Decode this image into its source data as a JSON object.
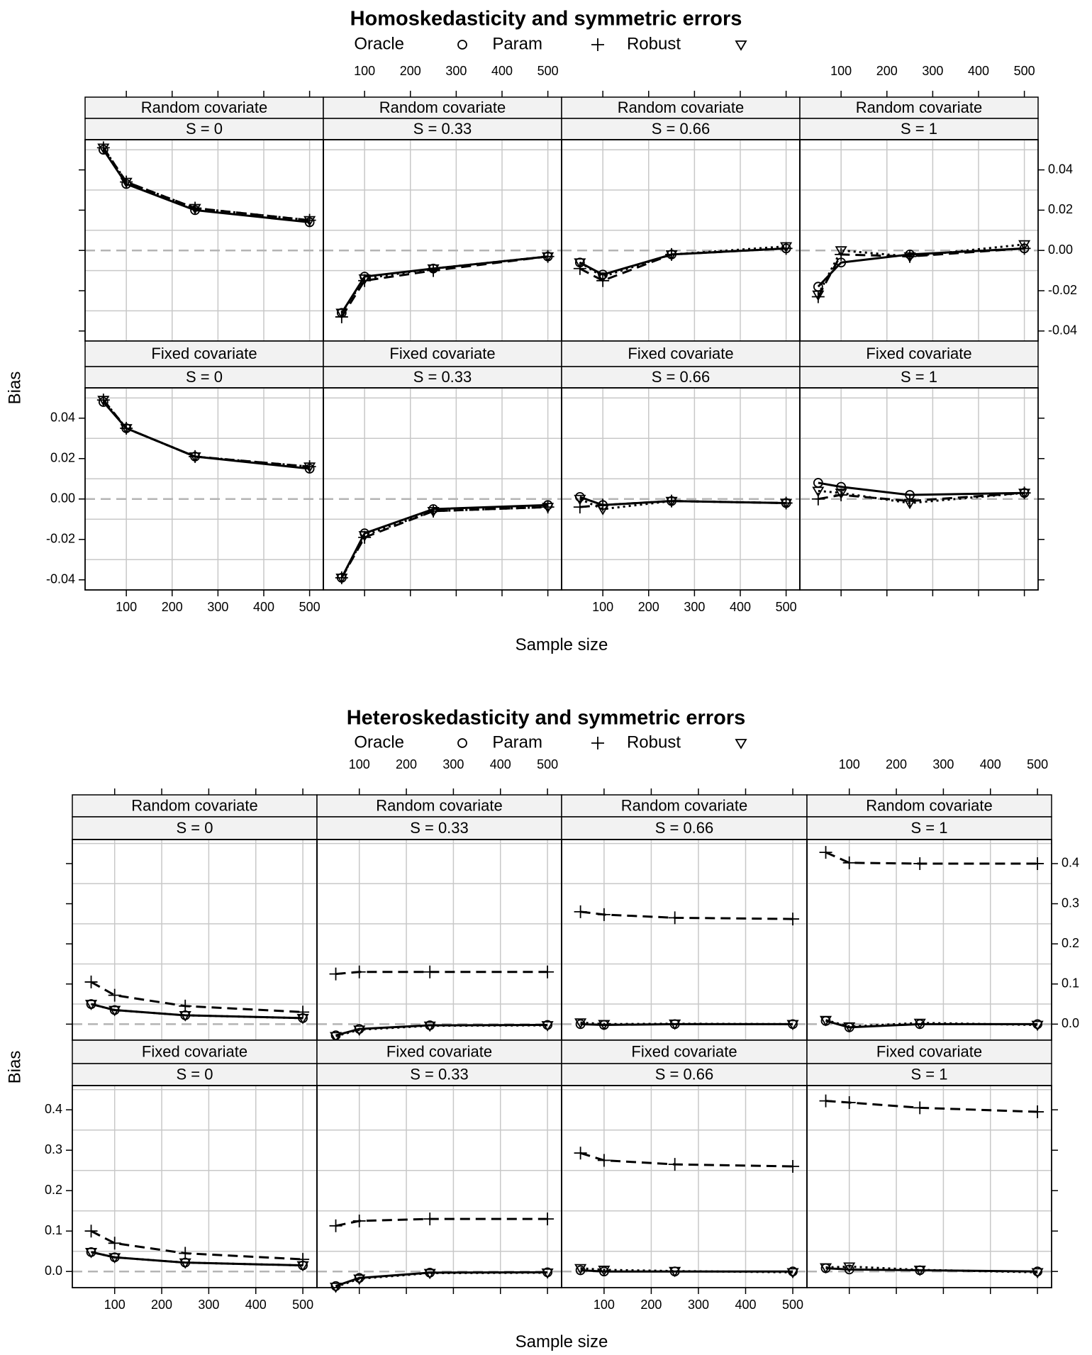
{
  "chart_data": [
    {
      "type": "line",
      "title": "Homoskedasticity and symmetric errors",
      "xlabel": "Sample size",
      "ylabel": "Bias",
      "x_ticks": [
        100,
        200,
        300,
        400,
        500
      ],
      "y_ticks": [
        -0.04,
        -0.02,
        0.0,
        0.02,
        0.04
      ],
      "y_tick_labels": [
        "-0.04",
        "-0.02",
        "0.00",
        "0.02",
        "0.04"
      ],
      "xlim": [
        10,
        530
      ],
      "ylim": [
        -0.045,
        0.055
      ],
      "reference_line": 0,
      "legend": [
        {
          "name": "Oracle",
          "marker": "circle",
          "line": "solid"
        },
        {
          "name": "Param",
          "marker": "plus",
          "line": "dashed"
        },
        {
          "name": "Robust",
          "marker": "triangle-down",
          "line": "dotted"
        }
      ],
      "rows": [
        {
          "strip": "Random covariate",
          "panels": [
            {
              "s_label": "S = 0",
              "x": [
                50,
                100,
                250,
                500
              ],
              "series": [
                {
                  "name": "Oracle",
                  "values": [
                    0.05,
                    0.033,
                    0.02,
                    0.014
                  ]
                },
                {
                  "name": "Param",
                  "values": [
                    0.051,
                    0.034,
                    0.021,
                    0.015
                  ]
                },
                {
                  "name": "Robust",
                  "values": [
                    0.051,
                    0.034,
                    0.021,
                    0.015
                  ]
                }
              ]
            },
            {
              "s_label": "S = 0.33",
              "x": [
                50,
                100,
                250,
                500
              ],
              "series": [
                {
                  "name": "Oracle",
                  "values": [
                    -0.031,
                    -0.013,
                    -0.009,
                    -0.003
                  ]
                },
                {
                  "name": "Param",
                  "values": [
                    -0.033,
                    -0.015,
                    -0.01,
                    -0.003
                  ]
                },
                {
                  "name": "Robust",
                  "values": [
                    -0.031,
                    -0.014,
                    -0.009,
                    -0.003
                  ]
                }
              ]
            },
            {
              "s_label": "S = 0.66",
              "x": [
                50,
                100,
                250,
                500
              ],
              "series": [
                {
                  "name": "Oracle",
                  "values": [
                    -0.006,
                    -0.012,
                    -0.002,
                    0.001
                  ]
                },
                {
                  "name": "Param",
                  "values": [
                    -0.009,
                    -0.015,
                    -0.002,
                    0.001
                  ]
                },
                {
                  "name": "Robust",
                  "values": [
                    -0.006,
                    -0.013,
                    -0.002,
                    0.002
                  ]
                }
              ]
            },
            {
              "s_label": "S = 1",
              "x": [
                50,
                100,
                250,
                500
              ],
              "series": [
                {
                  "name": "Oracle",
                  "values": [
                    -0.018,
                    -0.006,
                    -0.002,
                    0.001
                  ]
                },
                {
                  "name": "Param",
                  "values": [
                    -0.023,
                    -0.002,
                    -0.003,
                    0.001
                  ]
                },
                {
                  "name": "Robust",
                  "values": [
                    -0.022,
                    0.0,
                    -0.003,
                    0.003
                  ]
                }
              ]
            }
          ]
        },
        {
          "strip": "Fixed covariate",
          "panels": [
            {
              "s_label": "S = 0",
              "x": [
                50,
                100,
                250,
                500
              ],
              "series": [
                {
                  "name": "Oracle",
                  "values": [
                    0.048,
                    0.035,
                    0.021,
                    0.015
                  ]
                },
                {
                  "name": "Param",
                  "values": [
                    0.049,
                    0.035,
                    0.021,
                    0.016
                  ]
                },
                {
                  "name": "Robust",
                  "values": [
                    0.049,
                    0.035,
                    0.021,
                    0.016
                  ]
                }
              ]
            },
            {
              "s_label": "S = 0.33",
              "x": [
                50,
                100,
                250,
                500
              ],
              "series": [
                {
                  "name": "Oracle",
                  "values": [
                    -0.039,
                    -0.017,
                    -0.005,
                    -0.003
                  ]
                },
                {
                  "name": "Param",
                  "values": [
                    -0.039,
                    -0.019,
                    -0.006,
                    -0.004
                  ]
                },
                {
                  "name": "Robust",
                  "values": [
                    -0.039,
                    -0.018,
                    -0.006,
                    -0.004
                  ]
                }
              ]
            },
            {
              "s_label": "S = 0.66",
              "x": [
                50,
                100,
                250,
                500
              ],
              "series": [
                {
                  "name": "Oracle",
                  "values": [
                    0.001,
                    -0.003,
                    -0.001,
                    -0.002
                  ]
                },
                {
                  "name": "Param",
                  "values": [
                    -0.004,
                    -0.003,
                    -0.001,
                    -0.002
                  ]
                },
                {
                  "name": "Robust",
                  "values": [
                    0.0,
                    -0.005,
                    -0.001,
                    -0.002
                  ]
                }
              ]
            },
            {
              "s_label": "S = 1",
              "x": [
                50,
                100,
                250,
                500
              ],
              "series": [
                {
                  "name": "Oracle",
                  "values": [
                    0.008,
                    0.006,
                    0.002,
                    0.003
                  ]
                },
                {
                  "name": "Param",
                  "values": [
                    0.0,
                    0.002,
                    -0.001,
                    0.003
                  ]
                },
                {
                  "name": "Robust",
                  "values": [
                    0.004,
                    0.003,
                    -0.002,
                    0.003
                  ]
                }
              ]
            }
          ]
        }
      ]
    },
    {
      "type": "line",
      "title": "Heteroskedasticity and symmetric errors",
      "xlabel": "Sample size",
      "ylabel": "Bias",
      "x_ticks": [
        100,
        200,
        300,
        400,
        500
      ],
      "y_ticks": [
        0.0,
        0.1,
        0.2,
        0.3,
        0.4
      ],
      "y_tick_labels": [
        "0.0",
        "0.1",
        "0.2",
        "0.3",
        "0.4"
      ],
      "xlim": [
        10,
        530
      ],
      "ylim": [
        -0.04,
        0.46
      ],
      "reference_line": 0,
      "legend": [
        {
          "name": "Oracle",
          "marker": "circle",
          "line": "solid"
        },
        {
          "name": "Param",
          "marker": "plus",
          "line": "dashed"
        },
        {
          "name": "Robust",
          "marker": "triangle-down",
          "line": "dotted"
        }
      ],
      "rows": [
        {
          "strip": "Random covariate",
          "panels": [
            {
              "s_label": "S = 0",
              "x": [
                50,
                100,
                250,
                500
              ],
              "series": [
                {
                  "name": "Oracle",
                  "values": [
                    0.05,
                    0.035,
                    0.022,
                    0.015
                  ]
                },
                {
                  "name": "Param",
                  "values": [
                    0.105,
                    0.072,
                    0.045,
                    0.03
                  ]
                },
                {
                  "name": "Robust",
                  "values": [
                    0.05,
                    0.035,
                    0.022,
                    0.015
                  ]
                }
              ]
            },
            {
              "s_label": "S = 0.33",
              "x": [
                50,
                100,
                250,
                500
              ],
              "series": [
                {
                  "name": "Oracle",
                  "values": [
                    -0.028,
                    -0.012,
                    -0.003,
                    -0.002
                  ]
                },
                {
                  "name": "Param",
                  "values": [
                    0.125,
                    0.13,
                    0.13,
                    0.13
                  ]
                },
                {
                  "name": "Robust",
                  "values": [
                    -0.03,
                    -0.014,
                    -0.004,
                    -0.003
                  ]
                }
              ]
            },
            {
              "s_label": "S = 0.66",
              "x": [
                50,
                100,
                250,
                500
              ],
              "series": [
                {
                  "name": "Oracle",
                  "values": [
                    0.0,
                    -0.002,
                    0.0,
                    0.0
                  ]
                },
                {
                  "name": "Param",
                  "values": [
                    0.28,
                    0.273,
                    0.265,
                    0.262
                  ]
                },
                {
                  "name": "Robust",
                  "values": [
                    0.004,
                    0.0,
                    0.001,
                    0.0
                  ]
                }
              ]
            },
            {
              "s_label": "S = 1",
              "x": [
                50,
                100,
                250,
                500
              ],
              "series": [
                {
                  "name": "Oracle",
                  "values": [
                    0.008,
                    -0.008,
                    0.0,
                    0.0
                  ]
                },
                {
                  "name": "Param",
                  "values": [
                    0.428,
                    0.402,
                    0.4,
                    0.4
                  ]
                },
                {
                  "name": "Robust",
                  "values": [
                    0.01,
                    -0.006,
                    0.003,
                    -0.002
                  ]
                }
              ]
            }
          ]
        },
        {
          "strip": "Fixed covariate",
          "panels": [
            {
              "s_label": "S = 0",
              "x": [
                50,
                100,
                250,
                500
              ],
              "series": [
                {
                  "name": "Oracle",
                  "values": [
                    0.048,
                    0.035,
                    0.022,
                    0.015
                  ]
                },
                {
                  "name": "Param",
                  "values": [
                    0.1,
                    0.07,
                    0.045,
                    0.03
                  ]
                },
                {
                  "name": "Robust",
                  "values": [
                    0.048,
                    0.035,
                    0.022,
                    0.015
                  ]
                }
              ]
            },
            {
              "s_label": "S = 0.33",
              "x": [
                50,
                100,
                250,
                500
              ],
              "series": [
                {
                  "name": "Oracle",
                  "values": [
                    -0.036,
                    -0.016,
                    -0.003,
                    -0.002
                  ]
                },
                {
                  "name": "Param",
                  "values": [
                    0.113,
                    0.125,
                    0.13,
                    0.13
                  ]
                },
                {
                  "name": "Robust",
                  "values": [
                    -0.038,
                    -0.018,
                    -0.004,
                    -0.003
                  ]
                }
              ]
            },
            {
              "s_label": "S = 0.66",
              "x": [
                50,
                100,
                250,
                500
              ],
              "series": [
                {
                  "name": "Oracle",
                  "values": [
                    0.003,
                    0.0,
                    0.0,
                    0.0
                  ]
                },
                {
                  "name": "Param",
                  "values": [
                    0.293,
                    0.275,
                    0.265,
                    0.26
                  ]
                },
                {
                  "name": "Robust",
                  "values": [
                    0.008,
                    0.004,
                    0.001,
                    -0.002
                  ]
                }
              ]
            },
            {
              "s_label": "S = 1",
              "x": [
                50,
                100,
                250,
                500
              ],
              "series": [
                {
                  "name": "Oracle",
                  "values": [
                    0.008,
                    0.005,
                    0.003,
                    0.0
                  ]
                },
                {
                  "name": "Param",
                  "values": [
                    0.422,
                    0.418,
                    0.405,
                    0.395
                  ]
                },
                {
                  "name": "Robust",
                  "values": [
                    0.01,
                    0.012,
                    0.004,
                    -0.002
                  ]
                }
              ]
            }
          ]
        }
      ]
    }
  ]
}
